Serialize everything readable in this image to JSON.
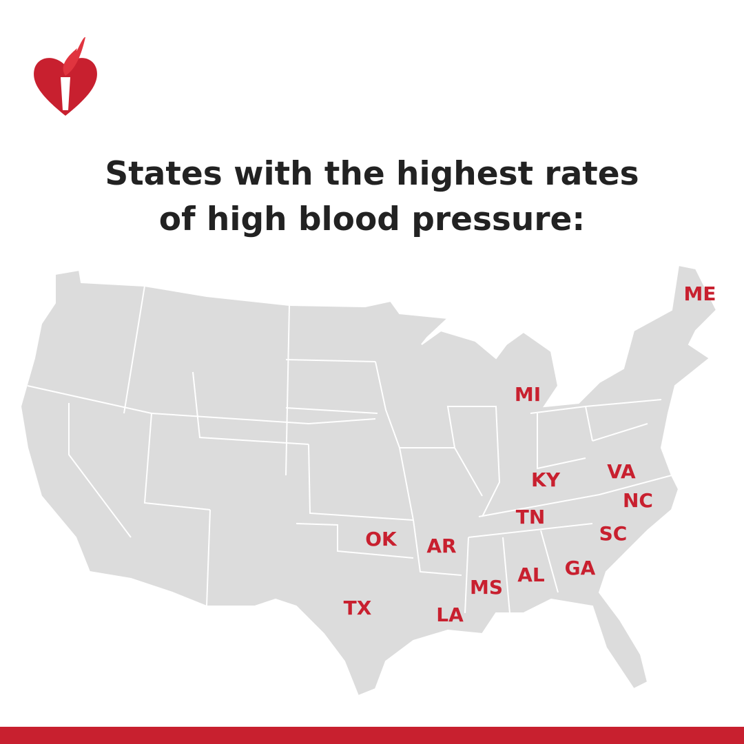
{
  "title": {
    "lines": [
      "States with the highest rates",
      "of high blood pressure:"
    ]
  },
  "map": {
    "labels": [
      "ME",
      "MI",
      "KY",
      "VA",
      "NC",
      "TN",
      "SC",
      "OK",
      "AR",
      "GA",
      "AL",
      "MS",
      "TX",
      "LA"
    ]
  }
}
